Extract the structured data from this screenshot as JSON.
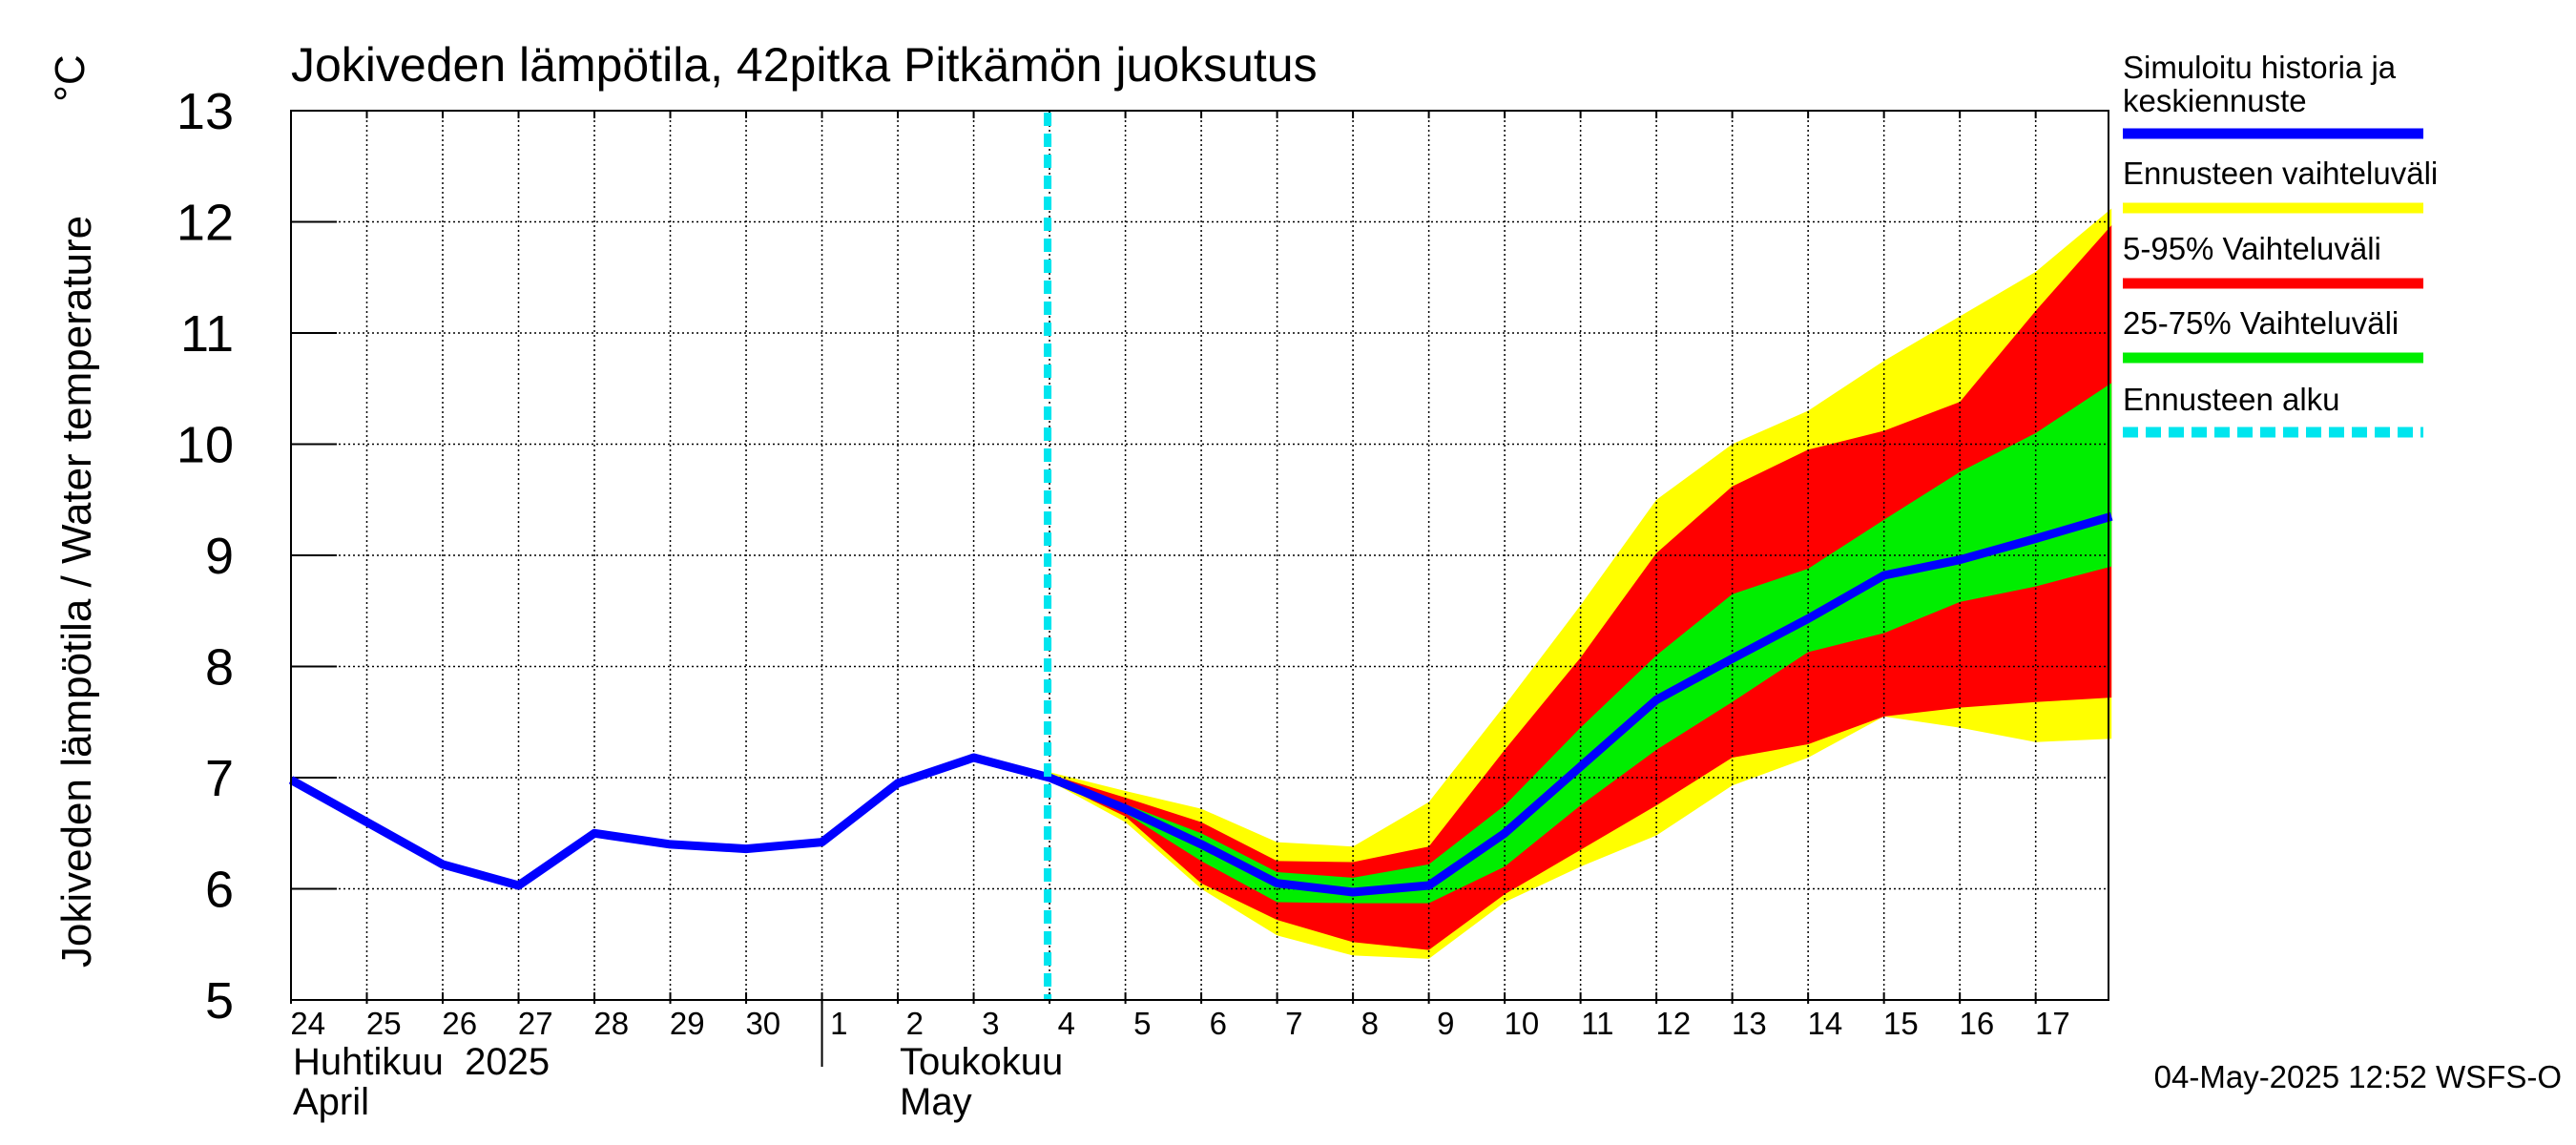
{
  "chart_data": {
    "type": "area",
    "title": "Jokiveden lämpötila, 42pitka Pitkämön juoksutus",
    "ylabel": "Jokiveden lämpötila / Water temperature",
    "yunit": "°C",
    "ylim": [
      5,
      13
    ],
    "yticks": [
      "5",
      "6",
      "7",
      "8",
      "9",
      "10",
      "11",
      "12",
      "13"
    ],
    "xticks": [
      "24",
      "25",
      "26",
      "27",
      "28",
      "29",
      "30",
      "1",
      "2",
      "3",
      "4",
      "5",
      "6",
      "7",
      "8",
      "9",
      "10",
      "11",
      "12",
      "13",
      "14",
      "15",
      "16",
      "17"
    ],
    "month_labels": [
      {
        "fi": "Huhtikuu  2025",
        "en": "April",
        "at_tick": "24"
      },
      {
        "fi": "Toukokuu",
        "en": "May",
        "at_tick": "2"
      }
    ],
    "grid": true,
    "legend_position": "right",
    "forecast_start": "4",
    "x": [
      "2025-04-24",
      "2025-04-25",
      "2025-04-26",
      "2025-04-27",
      "2025-04-28",
      "2025-04-29",
      "2025-04-30",
      "2025-05-01",
      "2025-05-02",
      "2025-05-03",
      "2025-05-04",
      "2025-05-05",
      "2025-05-06",
      "2025-05-07",
      "2025-05-08",
      "2025-05-09",
      "2025-05-10",
      "2025-05-11",
      "2025-05-12",
      "2025-05-13",
      "2025-05-14",
      "2025-05-15",
      "2025-05-16",
      "2025-05-17",
      "2025-05-18"
    ],
    "series": [
      {
        "name": "Simuloitu historia ja keskiennuste",
        "color": "#0000ff",
        "values": [
          6.98,
          6.6,
          6.22,
          6.03,
          6.5,
          6.4,
          6.36,
          6.42,
          6.95,
          7.18,
          7.0,
          6.72,
          6.4,
          6.05,
          5.97,
          6.03,
          6.5,
          7.1,
          7.7,
          8.07,
          8.43,
          8.82,
          8.96,
          9.15,
          9.35
        ]
      }
    ],
    "bands": [
      {
        "name": "Ennusteen vaihteluväli",
        "color": "#ffff00",
        "start_index": 10,
        "upper": [
          7.05,
          6.88,
          6.72,
          6.42,
          6.38,
          6.78,
          7.65,
          8.55,
          9.5,
          10.0,
          10.3,
          10.75,
          11.15,
          11.55,
          12.12
        ],
        "lower": [
          6.97,
          6.6,
          6.0,
          5.58,
          5.4,
          5.37,
          5.88,
          6.2,
          6.48,
          6.93,
          7.18,
          7.55,
          7.45,
          7.32,
          7.35
        ]
      },
      {
        "name": "5-95% Vaihteluväli",
        "color": "#ff0000",
        "start_index": 10,
        "upper": [
          7.03,
          6.82,
          6.6,
          6.25,
          6.24,
          6.38,
          7.25,
          8.08,
          9.02,
          9.62,
          9.95,
          10.12,
          10.38,
          11.2,
          11.97
        ],
        "lower": [
          6.98,
          6.65,
          6.05,
          5.72,
          5.52,
          5.45,
          5.95,
          6.35,
          6.75,
          7.18,
          7.3,
          7.55,
          7.63,
          7.68,
          7.72
        ]
      },
      {
        "name": "25-75% Vaihteluväli",
        "color": "#00ee00",
        "start_index": 10,
        "upper": [
          7.01,
          6.76,
          6.5,
          6.15,
          6.1,
          6.22,
          6.75,
          7.45,
          8.1,
          8.65,
          8.88,
          9.32,
          9.75,
          10.1,
          10.55
        ],
        "lower": [
          6.99,
          6.68,
          6.25,
          5.88,
          5.87,
          5.87,
          6.2,
          6.75,
          7.25,
          7.68,
          8.13,
          8.3,
          8.58,
          8.72,
          8.9
        ]
      }
    ],
    "legend": [
      {
        "label": "Simuloitu historia ja keskiennuste",
        "color": "#0000ff",
        "style": "solid"
      },
      {
        "label": "Ennusteen vaihteluväli",
        "color": "#ffff00",
        "style": "solid"
      },
      {
        "label": "5-95% Vaihteluväli",
        "color": "#ff0000",
        "style": "solid"
      },
      {
        "label": "25-75% Vaihteluväli",
        "color": "#00ee00",
        "style": "solid"
      },
      {
        "label": "Ennusteen alku",
        "color": "#00e5ee",
        "style": "dashed"
      }
    ],
    "footer": "04-May-2025 12:52 WSFS-O"
  }
}
